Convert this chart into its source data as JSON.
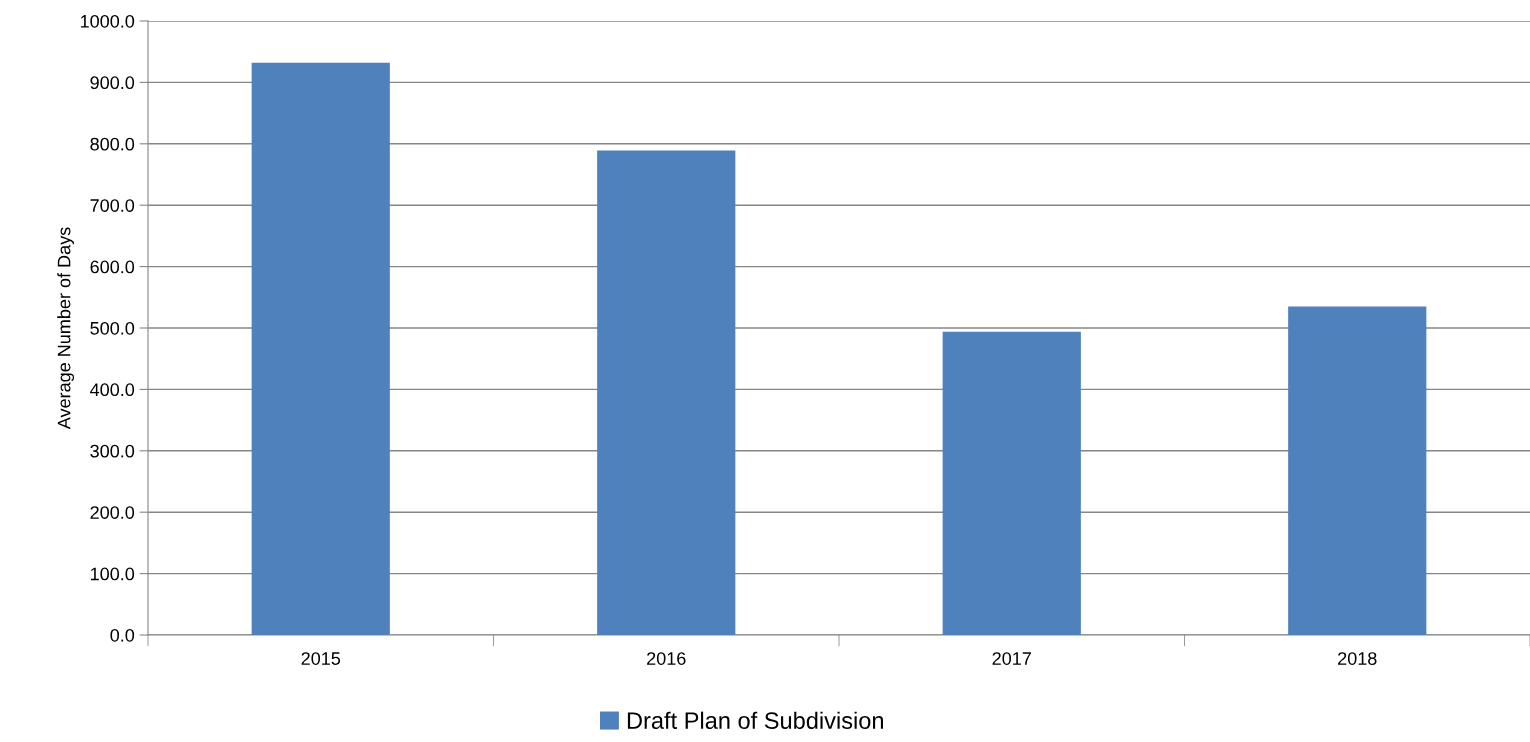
{
  "chart_data": {
    "type": "bar",
    "ylabel": "Average Number of Days",
    "categories": [
      "2015",
      "2016",
      "2017",
      "2018"
    ],
    "series": [
      {
        "name": "Draft Plan of Subdivision",
        "color": "#4f81bd",
        "values": [
          932,
          789,
          494,
          535
        ]
      }
    ],
    "ylim": [
      0,
      1000
    ],
    "yticks": [
      {
        "value": 0,
        "label": "0.0"
      },
      {
        "value": 100,
        "label": "100.0"
      },
      {
        "value": 200,
        "label": "200.0"
      },
      {
        "value": 300,
        "label": "300.0"
      },
      {
        "value": 400,
        "label": "400.0"
      },
      {
        "value": 500,
        "label": "500.0"
      },
      {
        "value": 600,
        "label": "600.0"
      },
      {
        "value": 700,
        "label": "700.0"
      },
      {
        "value": 800,
        "label": "800.0"
      },
      {
        "value": 900,
        "label": "900.0"
      },
      {
        "value": 1000,
        "label": "1000.0"
      }
    ],
    "grid": "y",
    "legend": "bottom"
  }
}
